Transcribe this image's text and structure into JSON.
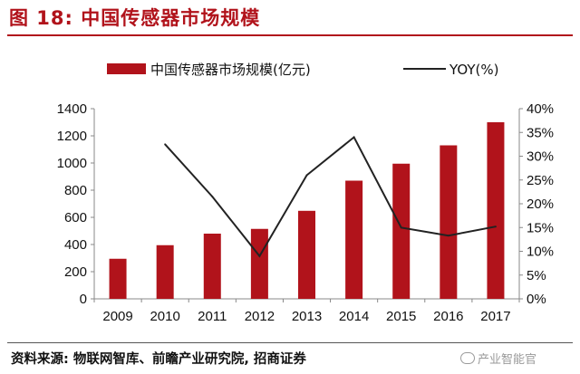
{
  "figure": {
    "title": "图 18:  中国传感器市场规模",
    "source": "资料来源:  物联网智库、前瞻产业研究院,  招商证券",
    "watermark": "产业智能官",
    "watermark_icon": "wechat-icon"
  },
  "colors": {
    "accent": "#b1131b",
    "bar": "#b1131b",
    "line": "#222222"
  },
  "chart_data": {
    "type": "bar",
    "categories": [
      "2009",
      "2010",
      "2011",
      "2012",
      "2013",
      "2014",
      "2015",
      "2016",
      "2017"
    ],
    "series": [
      {
        "name": "中国传感器市场规模(亿元)",
        "type": "bar",
        "axis": "left",
        "values": [
          295,
          395,
          480,
          515,
          648,
          870,
          995,
          1130,
          1300
        ]
      },
      {
        "name": "YOY(%)",
        "type": "line",
        "axis": "right",
        "values": [
          null,
          32.5,
          21.5,
          9.0,
          26.0,
          34.0,
          15.0,
          13.3,
          15.2
        ]
      }
    ],
    "ylim": [
      0,
      1400
    ],
    "yticks": [
      "0",
      "200",
      "400",
      "600",
      "800",
      "1000",
      "1200",
      "1400"
    ],
    "y2lim": [
      0,
      40
    ],
    "y2ticks": [
      "0%",
      "5%",
      "10%",
      "15%",
      "20%",
      "25%",
      "30%",
      "35%",
      "40%"
    ],
    "legend": [
      "中国传感器市场规模(亿元)",
      "YOY(%)"
    ],
    "legend_position": "top",
    "grid": false
  }
}
